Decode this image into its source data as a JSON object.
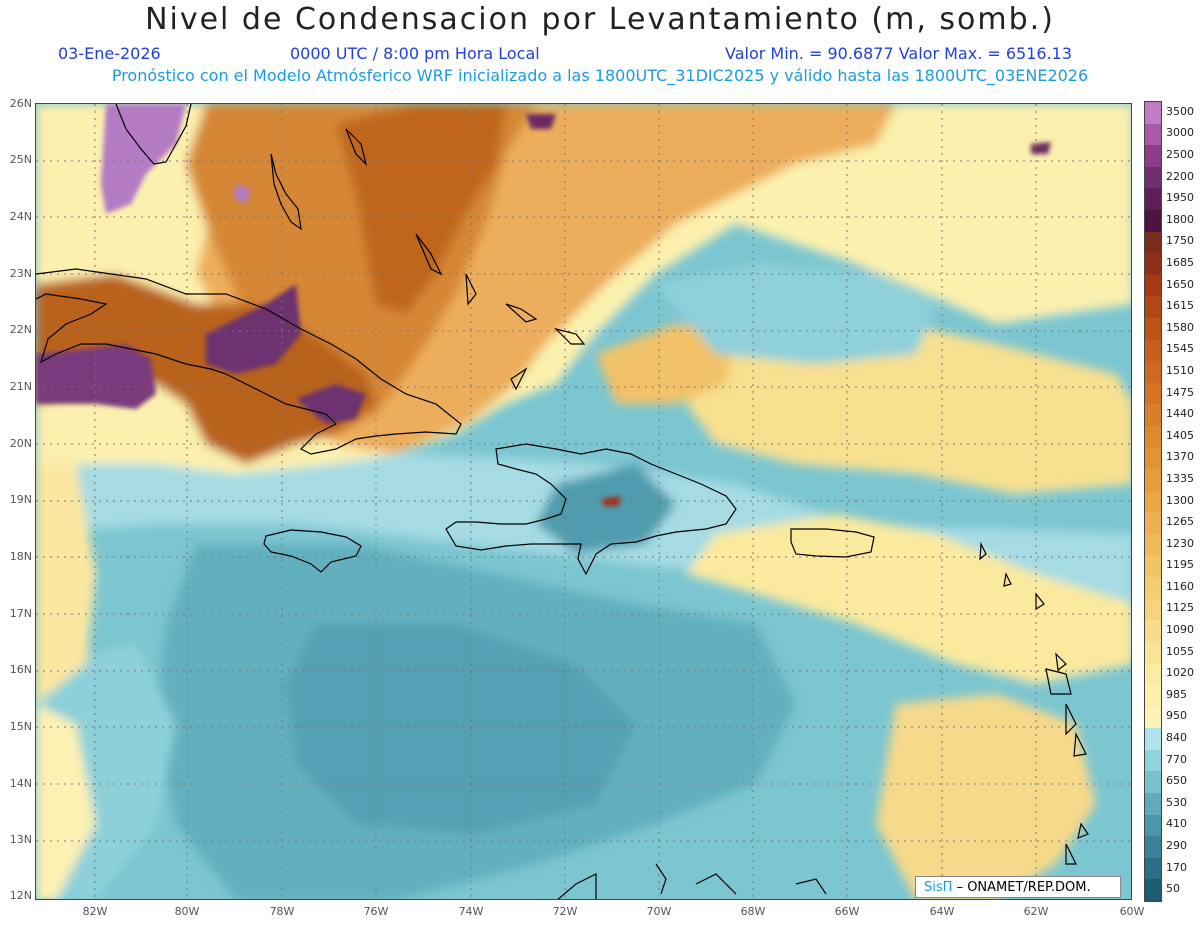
{
  "title": "Nivel de Condensacion por Levantamiento (m, somb.)",
  "header": {
    "date": "03-Ene-2026",
    "time": "0000 UTC / 8:00 pm Hora Local",
    "minmax": "Valor Min. = 90.6877  Valor Max. = 6516.13",
    "forecast": "Pronóstico con el Modelo Atmósferico WRF inicializado a las 1800UTC_31DIC2025 y válido hasta las  1800UTC_03ENE2026"
  },
  "axes": {
    "lat_labels": [
      "26N",
      "25N",
      "24N",
      "23N",
      "22N",
      "21N",
      "20N",
      "19N",
      "18N",
      "17N",
      "16N",
      "15N",
      "14N",
      "13N",
      "12N"
    ],
    "lon_labels": [
      "82W",
      "80W",
      "78W",
      "76W",
      "74W",
      "72W",
      "70W",
      "68W",
      "66W",
      "64W",
      "62W",
      "60W"
    ]
  },
  "legend": {
    "labels": [
      "3500",
      "3000",
      "2500",
      "2200",
      "1950",
      "1800",
      "1750",
      "1685",
      "1650",
      "1615",
      "1580",
      "1545",
      "1510",
      "1475",
      "1440",
      "1405",
      "1370",
      "1335",
      "1300",
      "1265",
      "1230",
      "1195",
      "1160",
      "1125",
      "1090",
      "1055",
      "1020",
      "985",
      "950",
      "840",
      "770",
      "650",
      "530",
      "410",
      "290",
      "170",
      "50"
    ],
    "colors": [
      "#c37bc7",
      "#a85aa8",
      "#8a3e8a",
      "#702e6e",
      "#5c1f58",
      "#4a1440",
      "#7a2c1c",
      "#902f18",
      "#a43b14",
      "#b04816",
      "#bc5418",
      "#c4601c",
      "#cc6a20",
      "#d47424",
      "#da7e2a",
      "#de8830",
      "#e29236",
      "#e69c3e",
      "#eaa646",
      "#eeb050",
      "#f0ba5a",
      "#f2c466",
      "#f4cc72",
      "#f6d47e",
      "#f8dc8a",
      "#f9e396",
      "#faeaa2",
      "#fcefac",
      "#fdf3b6",
      "#b0e4ec",
      "#92d2dc",
      "#78c0cc",
      "#5eabbb",
      "#4a96aa",
      "#3a8298",
      "#2b6e86",
      "#1f5c74"
    ]
  },
  "credit": {
    "sis": "SisΠ",
    "org": "– ONAMET/REP.DOM."
  },
  "colors": {
    "ocean_blue": "#76c3cf",
    "deep_blue": "#5aaab9",
    "light_cyan": "#a8dde6",
    "yellow": "#fdf1b0",
    "orange": "#e8a14a",
    "brown": "#b8601e",
    "purple": "#6e2f6b",
    "violet": "#b274c0"
  }
}
